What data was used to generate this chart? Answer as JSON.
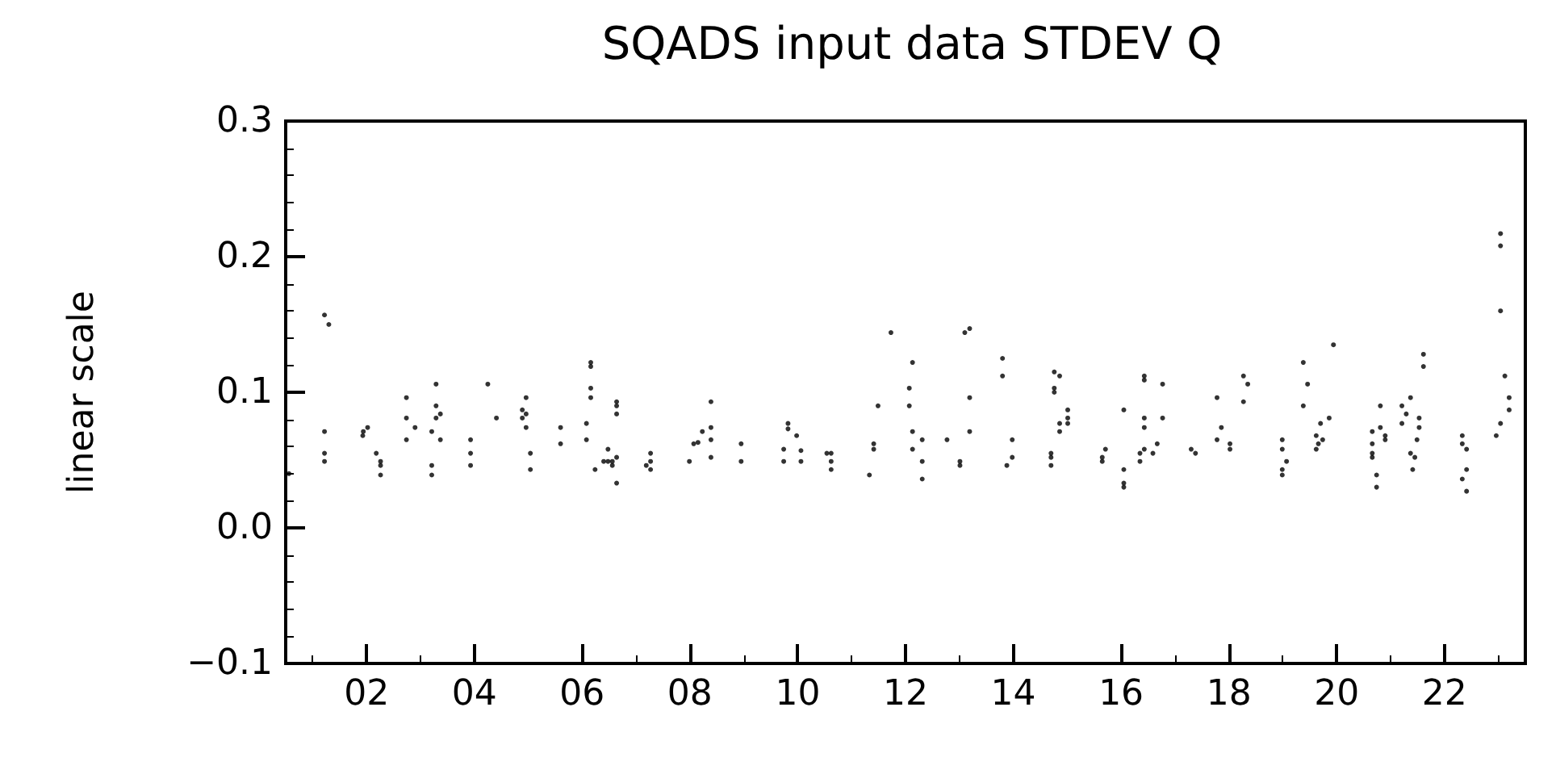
{
  "chart_data": {
    "type": "scatter",
    "title": "SQADS input data STDEV Q",
    "ylabel": "linear scale",
    "marker": "circle",
    "grid": false,
    "xlim": [
      0.5,
      23.5
    ],
    "xticks": [
      {
        "value": 2,
        "label": "02"
      },
      {
        "value": 4,
        "label": "04"
      },
      {
        "value": 6,
        "label": "06"
      },
      {
        "value": 8,
        "label": "08"
      },
      {
        "value": 10,
        "label": "10"
      },
      {
        "value": 12,
        "label": "12"
      },
      {
        "value": 14,
        "label": "14"
      },
      {
        "value": 16,
        "label": "16"
      },
      {
        "value": 18,
        "label": "18"
      },
      {
        "value": 20,
        "label": "20"
      },
      {
        "value": 22,
        "label": "22"
      }
    ],
    "ylim": [
      -0.1,
      0.3
    ],
    "yticks": [
      {
        "value": -0.1,
        "label": "−0.1"
      },
      {
        "value": 0,
        "label": "0.0"
      },
      0.1,
      0.2,
      0.3
    ],
    "series": [
      {
        "color": "#000000",
        "x": [
          0.56,
          1.22,
          1.3,
          1.22,
          1.22,
          1.22,
          1.94,
          2.02,
          1.93,
          2.18,
          2.26,
          2.26,
          2.26,
          2.74,
          2.74,
          2.74,
          2.9,
          3.29,
          3.29,
          3.37,
          3.29,
          3.21,
          3.37,
          3.21,
          3.21,
          3.93,
          3.93,
          3.93,
          4.25,
          4.41,
          4.96,
          4.89,
          4.96,
          4.89,
          4.96,
          5.04,
          5.04,
          5.6,
          5.6,
          6.16,
          6.16,
          6.16,
          6.16,
          6.08,
          6.08,
          6.24,
          6.48,
          6.4,
          6.48,
          6.64,
          6.56,
          6.56,
          6.64,
          6.64,
          6.64,
          6.64,
          7.27,
          7.19,
          7.27,
          7.27,
          7.99,
          8.07,
          8.15,
          8.23,
          8.39,
          8.39,
          8.39,
          8.39,
          8.95,
          8.95,
          9.82,
          9.82,
          9.98,
          9.74,
          9.74,
          10.06,
          10.06,
          10.54,
          10.62,
          10.62,
          10.62,
          11.33,
          11.41,
          11.41,
          11.49,
          11.73,
          12.07,
          12.07,
          12.13,
          12.13,
          12.13,
          12.31,
          12.31,
          12.31,
          12.77,
          13.01,
          13.01,
          13.1,
          13.19,
          13.19,
          13.19,
          13.8,
          13.8,
          13.98,
          13.98,
          13.88,
          14.76,
          14.86,
          14.76,
          14.76,
          15.01,
          14.86,
          15.01,
          15.01,
          14.86,
          14.7,
          14.7,
          14.7,
          15.65,
          15.65,
          15.71,
          16.05,
          16.05,
          16.05,
          16.05,
          16.43,
          16.43,
          16.43,
          16.43,
          16.77,
          16.77,
          16.35,
          16.35,
          16.43,
          16.59,
          16.67,
          17.3,
          17.38,
          17.78,
          17.86,
          17.78,
          18.02,
          18.02,
          18.27,
          18.35,
          18.27,
          18.99,
          18.99,
          19.07,
          18.99,
          18.99,
          19.38,
          19.46,
          19.38,
          19.7,
          19.86,
          19.94,
          19.62,
          19.66,
          19.74,
          19.62,
          20.66,
          20.66,
          20.66,
          20.66,
          20.74,
          20.74,
          20.81,
          20.81,
          20.9,
          20.9,
          21.21,
          21.29,
          21.37,
          21.21,
          21.53,
          21.53,
          21.49,
          21.37,
          21.45,
          21.41,
          21.61,
          21.61,
          22.33,
          22.33,
          22.41,
          22.41,
          22.33,
          22.41,
          23.04,
          23.04,
          23.04,
          23.12,
          23.2,
          23.2,
          23.04,
          22.96
        ],
        "values": [
          0.04,
          0.157,
          0.15,
          0.071,
          0.055,
          0.049,
          0.071,
          0.074,
          0.068,
          0.055,
          0.049,
          0.046,
          0.039,
          0.096,
          0.081,
          0.065,
          0.074,
          0.106,
          0.09,
          0.084,
          0.081,
          0.071,
          0.065,
          0.046,
          0.039,
          0.065,
          0.055,
          0.046,
          0.106,
          0.081,
          0.096,
          0.087,
          0.084,
          0.081,
          0.074,
          0.055,
          0.043,
          0.074,
          0.062,
          0.122,
          0.119,
          0.103,
          0.096,
          0.077,
          0.065,
          0.043,
          0.058,
          0.049,
          0.049,
          0.052,
          0.049,
          0.046,
          0.033,
          0.093,
          0.09,
          0.084,
          0.055,
          0.046,
          0.049,
          0.043,
          0.049,
          0.062,
          0.063,
          0.071,
          0.093,
          0.074,
          0.065,
          0.052,
          0.062,
          0.049,
          0.077,
          0.073,
          0.068,
          0.058,
          0.049,
          0.057,
          0.049,
          0.055,
          0.055,
          0.049,
          0.043,
          0.039,
          0.062,
          0.058,
          0.09,
          0.144,
          0.103,
          0.09,
          0.122,
          0.071,
          0.058,
          0.065,
          0.049,
          0.036,
          0.065,
          0.049,
          0.046,
          0.144,
          0.147,
          0.096,
          0.071,
          0.125,
          0.112,
          0.065,
          0.052,
          0.046,
          0.115,
          0.112,
          0.103,
          0.1,
          0.087,
          0.077,
          0.081,
          0.077,
          0.071,
          0.055,
          0.052,
          0.046,
          0.052,
          0.049,
          0.058,
          0.087,
          0.043,
          0.033,
          0.03,
          0.112,
          0.109,
          0.081,
          0.074,
          0.106,
          0.081,
          0.055,
          0.049,
          0.058,
          0.055,
          0.062,
          0.058,
          0.055,
          0.096,
          0.074,
          0.065,
          0.062,
          0.058,
          0.112,
          0.106,
          0.093,
          0.065,
          0.058,
          0.049,
          0.043,
          0.039,
          0.122,
          0.106,
          0.09,
          0.077,
          0.081,
          0.135,
          0.068,
          0.062,
          0.065,
          0.058,
          0.071,
          0.062,
          0.055,
          0.052,
          0.039,
          0.03,
          0.09,
          0.074,
          0.068,
          0.065,
          0.09,
          0.084,
          0.096,
          0.077,
          0.081,
          0.074,
          0.065,
          0.055,
          0.052,
          0.043,
          0.128,
          0.119,
          0.068,
          0.062,
          0.058,
          0.043,
          0.036,
          0.027,
          0.217,
          0.208,
          0.16,
          0.112,
          0.096,
          0.087,
          0.077,
          0.068
        ]
      }
    ]
  }
}
